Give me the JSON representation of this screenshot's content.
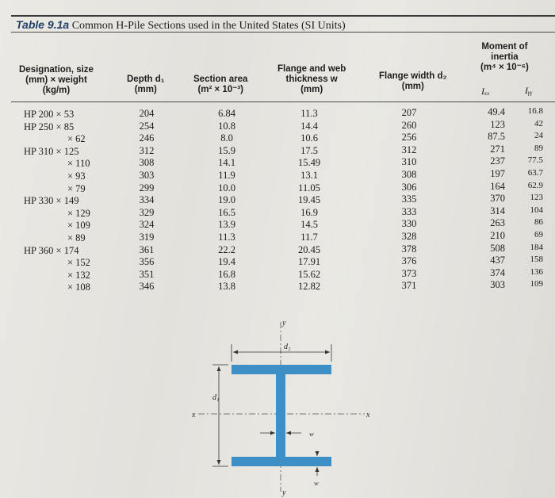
{
  "table": {
    "number": "Table 9.1a",
    "title": "Common H-Pile Sections used in the United States (SI Units)",
    "headers": {
      "designation": [
        "Designation, size",
        "(mm) × weight",
        "(kg/m)"
      ],
      "depth": [
        "Depth d₁",
        "(mm)"
      ],
      "area": [
        "Section area",
        "(m² × 10⁻³)"
      ],
      "thickness": [
        "Flange and web",
        "thickness w",
        "(mm)"
      ],
      "flange_width": [
        "Flange width d₂",
        "(mm)"
      ],
      "moment": [
        "Moment of",
        "inertia",
        "(m⁴ × 10⁻⁶)"
      ],
      "ixx": "Iₓₓ",
      "iyy": "Iᵧᵧ"
    },
    "rows": [
      {
        "designation": "HP 200 × 53",
        "depth": "204",
        "area": "6.84",
        "thickness": "11.3",
        "flange_width": "207",
        "ixx": "49.4",
        "iyy": "16.8"
      },
      {
        "designation": "HP 250 × 85",
        "depth": "254",
        "area": "10.8",
        "thickness": "14.4",
        "flange_width": "260",
        "ixx": "123",
        "iyy": "42"
      },
      {
        "designation": "× 62",
        "depth": "246",
        "area": "8.0",
        "thickness": "10.6",
        "flange_width": "256",
        "ixx": "87.5",
        "iyy": "24"
      },
      {
        "designation": "HP 310 × 125",
        "depth": "312",
        "area": "15.9",
        "thickness": "17.5",
        "flange_width": "312",
        "ixx": "271",
        "iyy": "89"
      },
      {
        "designation": "× 110",
        "depth": "308",
        "area": "14.1",
        "thickness": "15.49",
        "flange_width": "310",
        "ixx": "237",
        "iyy": "77.5"
      },
      {
        "designation": "× 93",
        "depth": "303",
        "area": "11.9",
        "thickness": "13.1",
        "flange_width": "308",
        "ixx": "197",
        "iyy": "63.7"
      },
      {
        "designation": "× 79",
        "depth": "299",
        "area": "10.0",
        "thickness": "11.05",
        "flange_width": "306",
        "ixx": "164",
        "iyy": "62.9"
      },
      {
        "designation": "HP 330 × 149",
        "depth": "334",
        "area": "19.0",
        "thickness": "19.45",
        "flange_width": "335",
        "ixx": "370",
        "iyy": "123"
      },
      {
        "designation": "× 129",
        "depth": "329",
        "area": "16.5",
        "thickness": "16.9",
        "flange_width": "333",
        "ixx": "314",
        "iyy": "104"
      },
      {
        "designation": "× 109",
        "depth": "324",
        "area": "13.9",
        "thickness": "14.5",
        "flange_width": "330",
        "ixx": "263",
        "iyy": "86"
      },
      {
        "designation": "× 89",
        "depth": "319",
        "area": "11.3",
        "thickness": "11.7",
        "flange_width": "328",
        "ixx": "210",
        "iyy": "69"
      },
      {
        "designation": "HP 360 × 174",
        "depth": "361",
        "area": "22.2",
        "thickness": "20.45",
        "flange_width": "378",
        "ixx": "508",
        "iyy": "184"
      },
      {
        "designation": "× 152",
        "depth": "356",
        "area": "19.4",
        "thickness": "17.91",
        "flange_width": "376",
        "ixx": "437",
        "iyy": "158"
      },
      {
        "designation": "× 132",
        "depth": "351",
        "area": "16.8",
        "thickness": "15.62",
        "flange_width": "373",
        "ixx": "374",
        "iyy": "136"
      },
      {
        "designation": "× 108",
        "depth": "346",
        "area": "13.8",
        "thickness": "12.82",
        "flange_width": "371",
        "ixx": "303",
        "iyy": "109"
      }
    ]
  },
  "figure": {
    "labels": {
      "y": "y",
      "x": "x",
      "x_right": "x",
      "d1": "d₁",
      "d2": "d₂",
      "w": "w"
    },
    "steel_color": "#3e8fc6"
  }
}
